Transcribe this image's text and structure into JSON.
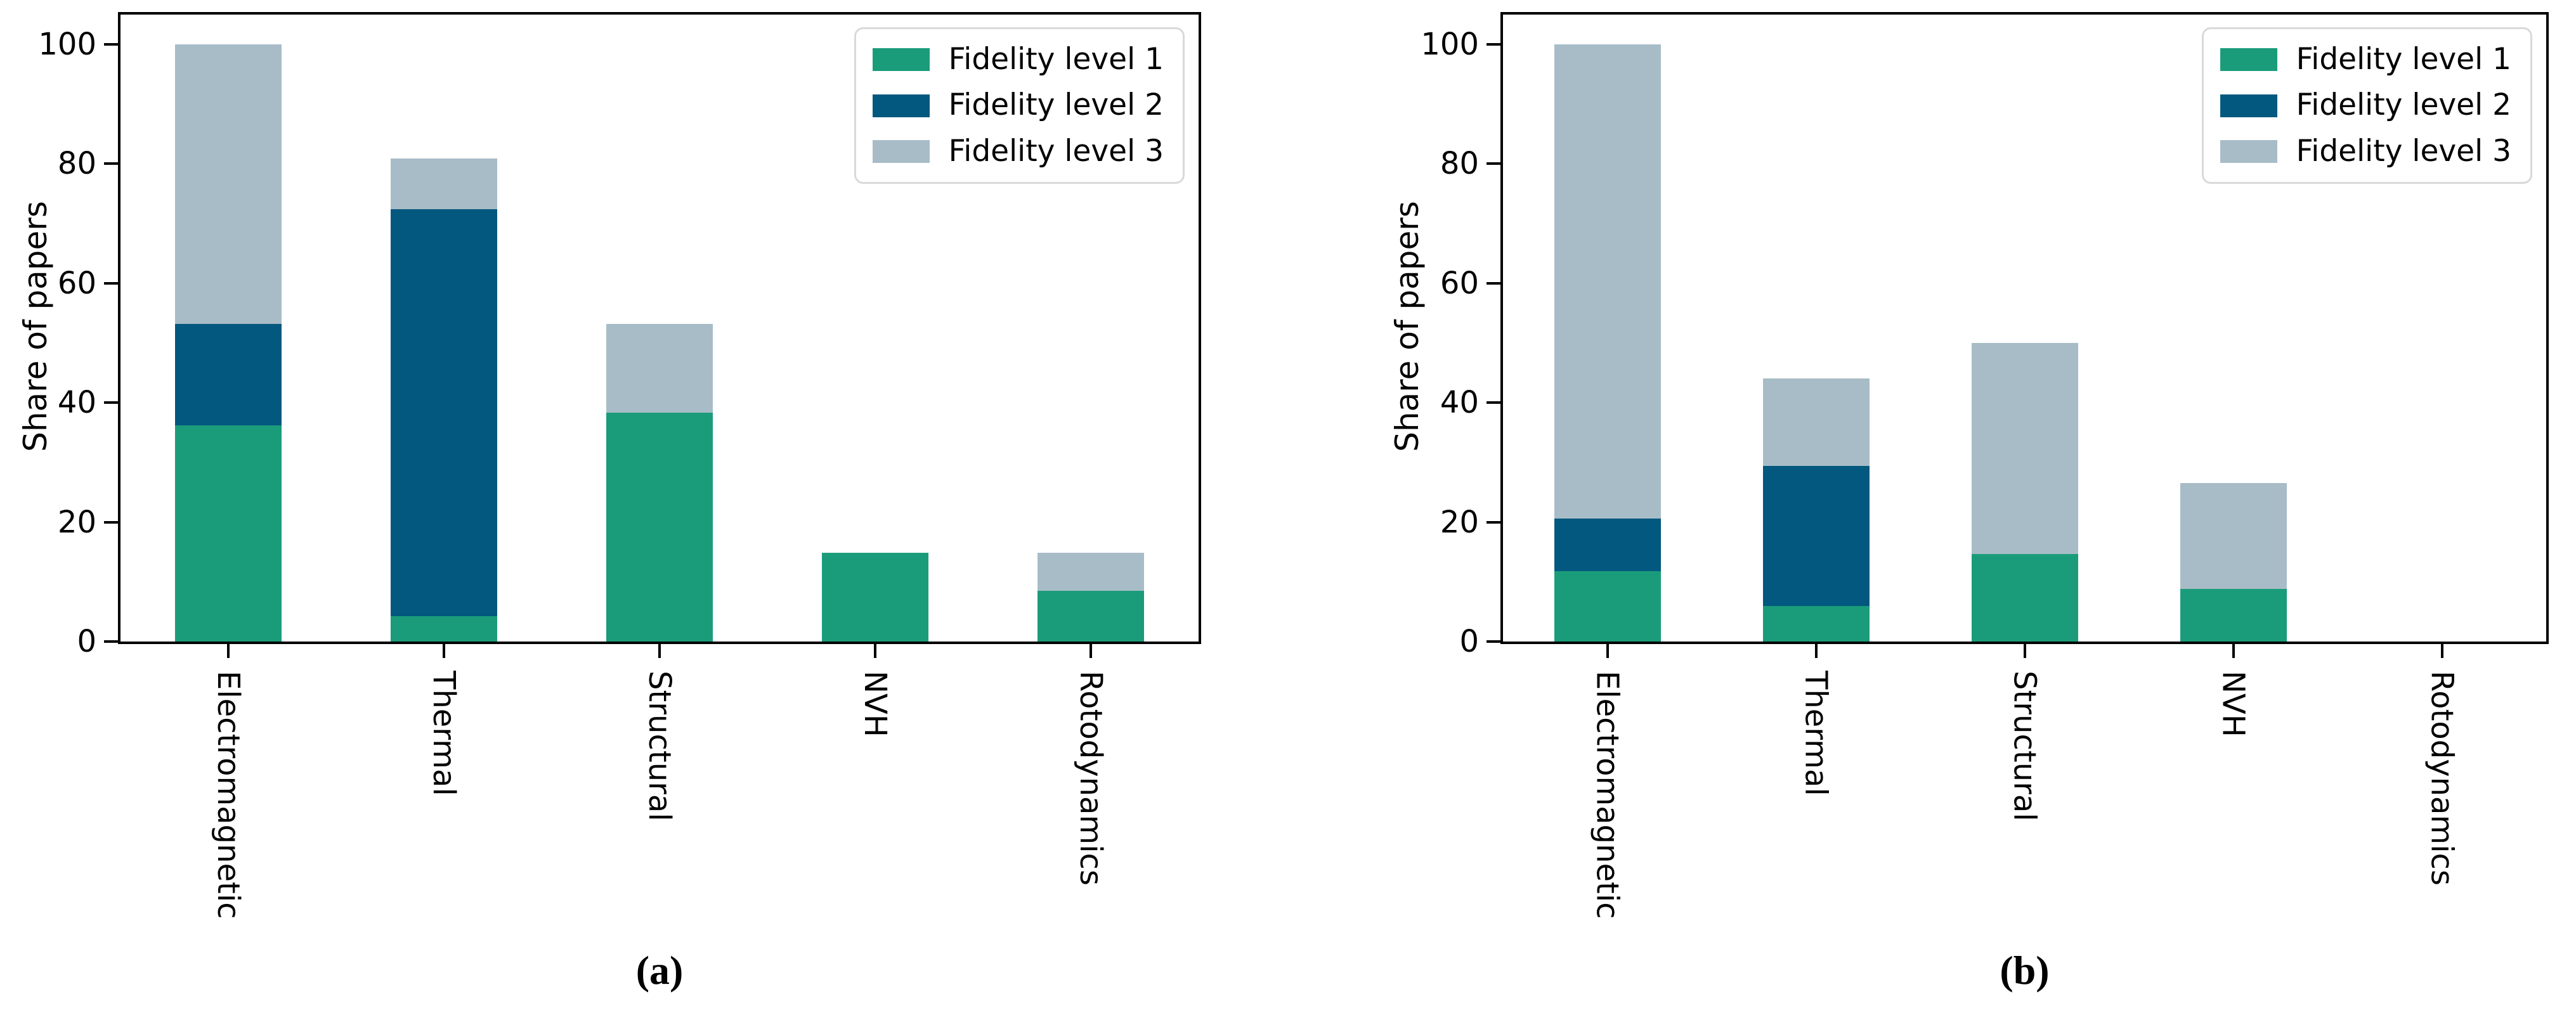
{
  "styles": {
    "background": "#ffffff",
    "axis_color": "#000000",
    "text_color": "#000000",
    "legend_border_color": "#d9d9d9",
    "fidelity1_color": "#1a9c7a",
    "fidelity2_color": "#02587e",
    "fidelity3_color": "#a8bcc7"
  },
  "chart_data": [
    {
      "id": "a",
      "type": "bar",
      "stacked": true,
      "caption": "(a)",
      "title": "",
      "xlabel": "",
      "ylabel": "Share of papers",
      "ylim": [
        0,
        105
      ],
      "yticks": [
        0,
        20,
        40,
        60,
        80,
        100
      ],
      "grid": false,
      "legend_position": "upper right",
      "categories": [
        "Electromagnetic",
        "Thermal",
        "Structural",
        "NVH",
        "Rotodynamics"
      ],
      "series": [
        {
          "name": "Fidelity level 1",
          "color": "#1a9c7a",
          "values": [
            36.2,
            4.3,
            38.3,
            14.9,
            8.5
          ]
        },
        {
          "name": "Fidelity level 2",
          "color": "#02587e",
          "values": [
            17.0,
            68.1,
            0,
            0,
            0
          ]
        },
        {
          "name": "Fidelity level 3",
          "color": "#a8bcc7",
          "values": [
            46.8,
            8.5,
            14.9,
            0,
            6.4
          ]
        }
      ]
    },
    {
      "id": "b",
      "type": "bar",
      "stacked": true,
      "caption": "(b)",
      "title": "",
      "xlabel": "",
      "ylabel": "Share of papers",
      "ylim": [
        0,
        105
      ],
      "yticks": [
        0,
        20,
        40,
        60,
        80,
        100
      ],
      "grid": false,
      "legend_position": "upper right",
      "categories": [
        "Electromagnetic",
        "Thermal",
        "Structural",
        "NVH",
        "Rotodynamics"
      ],
      "series": [
        {
          "name": "Fidelity level 1",
          "color": "#1a9c7a",
          "values": [
            11.8,
            5.9,
            14.7,
            8.8,
            0
          ]
        },
        {
          "name": "Fidelity level 2",
          "color": "#02587e",
          "values": [
            8.8,
            23.5,
            0,
            0,
            0
          ]
        },
        {
          "name": "Fidelity level 3",
          "color": "#a8bcc7",
          "values": [
            79.4,
            14.7,
            35.3,
            17.7,
            0
          ]
        }
      ]
    }
  ]
}
